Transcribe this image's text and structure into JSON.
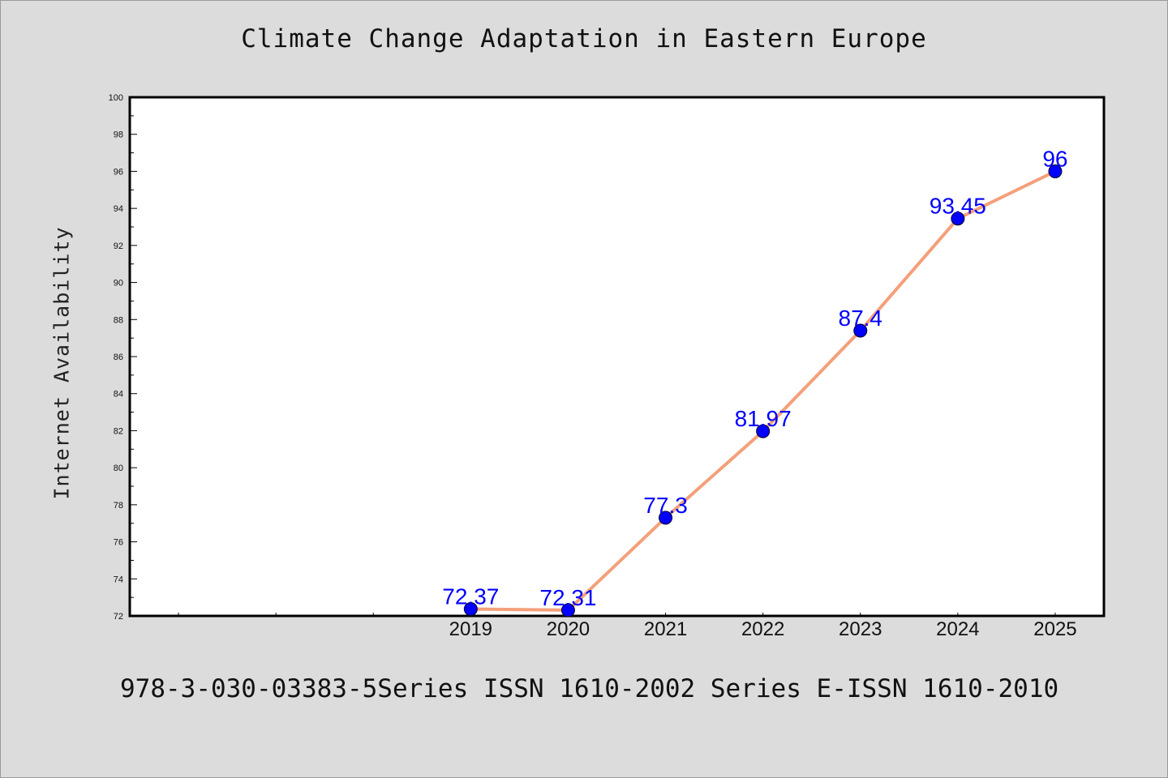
{
  "footer_text": "978-3-030-03383-5Series ISSN 1610-2002 Series E-ISSN 1610-2010",
  "colors": {
    "background": "#dcdcdc",
    "plot_background": "#ffffff",
    "line": "#f4a07a",
    "marker": "#0000ff",
    "data_label": "#0000ff"
  },
  "chart_data": {
    "type": "line",
    "title": "Climate Change Adaptation in Eastern Europe",
    "xlabel": "",
    "ylabel": "Internet Availability",
    "x": [
      "2019",
      "2020",
      "2021",
      "2022",
      "2023",
      "2024",
      "2025"
    ],
    "series": [
      {
        "values": [
          72.37,
          72.31,
          77.3,
          81.97,
          87.4,
          93.45,
          96
        ],
        "labels": [
          "72.37",
          "72.31",
          "77.3",
          "81.97",
          "87.4",
          "93.45",
          "96"
        ]
      }
    ],
    "ylim": [
      72,
      100
    ],
    "yticks": [
      72,
      74,
      76,
      78,
      80,
      82,
      84,
      86,
      88,
      90,
      92,
      94,
      96,
      98,
      100
    ],
    "x_slots": 10,
    "grid": false,
    "legend": "none"
  }
}
